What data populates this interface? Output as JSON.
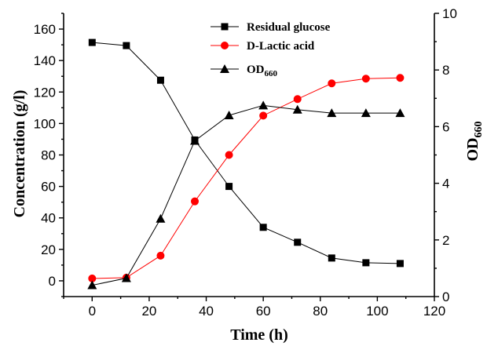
{
  "chart_data": {
    "type": "line",
    "xlabel": "Time (h)",
    "ylabel_left": "Concentration (g/l)",
    "ylabel_right": {
      "base": "OD",
      "sub": "660"
    },
    "xlim": [
      -10,
      120
    ],
    "ylim_left": [
      -10,
      170
    ],
    "ylim_right": [
      0,
      10
    ],
    "xticks": [
      0,
      20,
      40,
      60,
      80,
      100,
      120
    ],
    "yticks_left": [
      0,
      20,
      40,
      60,
      80,
      100,
      120,
      140,
      160
    ],
    "yticks_right": [
      0,
      2,
      4,
      6,
      8,
      10
    ],
    "legend_position": "top-center",
    "x": [
      0,
      12,
      24,
      36,
      48,
      60,
      72,
      84,
      96,
      108
    ],
    "series": [
      {
        "name": "Residual glucose",
        "axis": "left",
        "marker": "square",
        "color": "#000000",
        "line_color": "#000000",
        "values": [
          151.5,
          149.5,
          127.5,
          89.5,
          60,
          34,
          24.5,
          14.5,
          11.5,
          11
        ]
      },
      {
        "name": "D-Lactic acid",
        "axis": "left",
        "marker": "circle",
        "color": "#ff0000",
        "line_color": "#ff0000",
        "values": [
          1.5,
          2,
          16,
          50.5,
          80,
          105,
          115.5,
          125.5,
          128.5,
          129
        ]
      },
      {
        "name": "OD660",
        "name_base": "OD",
        "name_sub": "660",
        "axis": "right",
        "marker": "triangle",
        "color": "#000000",
        "line_color": "#000000",
        "values": [
          0.4,
          0.65,
          2.75,
          5.5,
          6.4,
          6.75,
          6.6,
          6.48,
          6.48,
          6.48
        ]
      }
    ]
  }
}
